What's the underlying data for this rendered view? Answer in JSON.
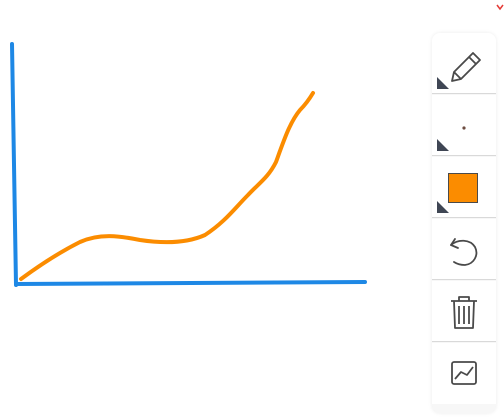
{
  "toolbar": {
    "tools": [
      {
        "name": "pen-tool",
        "icon": "pencil-icon",
        "has_corner": true
      },
      {
        "name": "brush-size-tool",
        "icon": "dot-icon",
        "has_corner": true
      },
      {
        "name": "color-tool",
        "icon": "color-swatch",
        "color": "#fb8c00",
        "has_corner": true
      },
      {
        "name": "undo-tool",
        "icon": "undo-icon",
        "has_corner": false
      },
      {
        "name": "delete-tool",
        "icon": "trash-icon",
        "has_corner": false
      },
      {
        "name": "chart-tool",
        "icon": "line-chart-icon",
        "has_corner": false
      }
    ]
  },
  "drawing": {
    "axis_color": "#1e88e5",
    "stroke_color": "#fb8c00"
  }
}
